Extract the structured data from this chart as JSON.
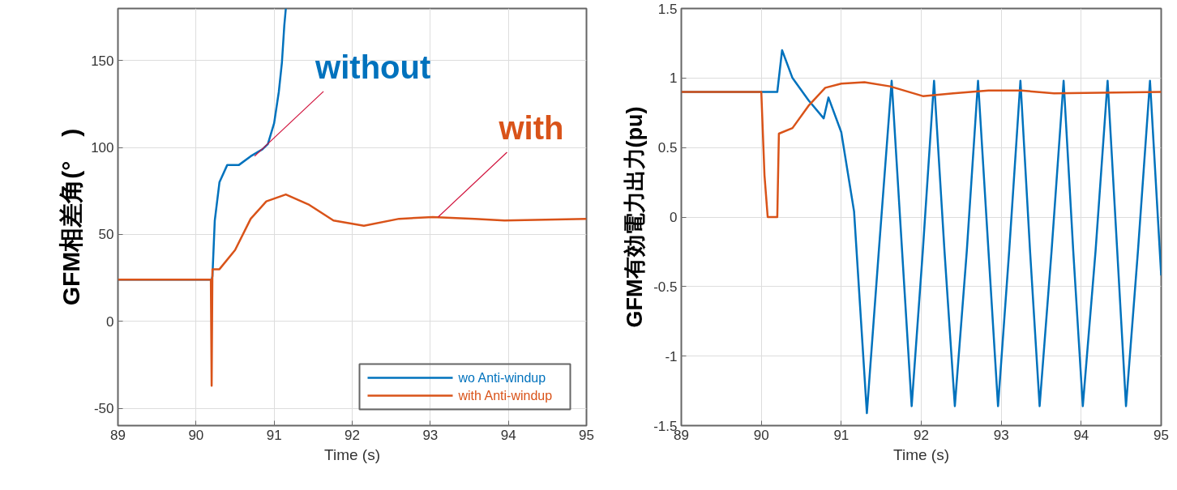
{
  "chart_data": [
    {
      "type": "line",
      "xlabel": "Time (s)",
      "ylabel": "GFM相差角(°　)",
      "xlim": [
        89,
        95
      ],
      "xticks": [
        89,
        90,
        91,
        92,
        93,
        94,
        95
      ],
      "ylim": [
        -60,
        180
      ],
      "yticks": [
        -50,
        0,
        50,
        100,
        150
      ],
      "grid": true,
      "legend": "bottom right",
      "line_style": "solid",
      "annotations": [
        {
          "text": "without",
          "x": 90.75,
          "y": 95
        },
        {
          "text": "with",
          "x": 93.1,
          "y": 60
        }
      ],
      "series": [
        {
          "name": "wo Anti-windup",
          "color": "#0072bd",
          "x": [
            89,
            90.2,
            90.21,
            90.24,
            90.3,
            90.4,
            90.55,
            90.7,
            90.85,
            90.92,
            91.0,
            91.06,
            91.1,
            91.13,
            91.15
          ],
          "values": [
            24,
            24,
            26,
            58,
            80,
            90,
            90,
            95,
            99,
            102,
            114,
            132,
            149,
            170,
            180
          ]
        },
        {
          "name": "with Anti-windup",
          "color": "#d95319",
          "x": [
            89,
            90.19,
            90.2,
            90.21,
            90.3,
            90.5,
            90.7,
            90.9,
            91.15,
            91.45,
            91.76,
            92.15,
            92.6,
            93.03,
            93.57,
            93.95,
            95
          ],
          "values": [
            24,
            24,
            -37,
            30,
            30,
            41,
            59,
            69,
            73,
            67,
            58,
            55,
            59,
            60,
            59,
            58,
            59
          ]
        }
      ]
    },
    {
      "type": "line",
      "xlabel": "Time (s)",
      "ylabel": "GFM有効電力出力(pu)",
      "xlim": [
        89,
        95
      ],
      "xticks": [
        89,
        90,
        91,
        92,
        93,
        94,
        95
      ],
      "ylim": [
        -1.5,
        1.5
      ],
      "yticks": [
        -1.5,
        -1,
        -0.5,
        0,
        0.5,
        1,
        1.5
      ],
      "grid": true,
      "line_style": "solid",
      "series": [
        {
          "color": "#0072bd",
          "x": [
            89,
            90.2,
            90.26,
            90.39,
            90.59,
            90.78,
            90.84,
            91.0,
            91.16,
            91.32,
            91.47,
            91.63,
            91.76,
            91.88,
            92.02,
            92.16,
            92.29,
            92.42,
            92.57,
            92.71,
            92.84,
            92.96,
            93.1,
            93.24,
            93.36,
            93.48,
            93.63,
            93.78,
            93.9,
            94.02,
            94.18,
            94.33,
            94.45,
            94.56,
            94.71,
            94.86,
            95
          ],
          "values": [
            0.9,
            0.9,
            1.2,
            1.0,
            0.84,
            0.71,
            0.86,
            0.61,
            0.04,
            -1.41,
            -0.24,
            0.98,
            -0.24,
            -1.36,
            -0.24,
            0.98,
            -0.24,
            -1.36,
            -0.24,
            0.98,
            -0.24,
            -1.36,
            -0.24,
            0.98,
            -0.24,
            -1.36,
            -0.24,
            0.98,
            -0.24,
            -1.36,
            -0.24,
            0.98,
            -0.24,
            -1.36,
            -0.24,
            0.98,
            -0.42
          ]
        },
        {
          "color": "#d95319",
          "x": [
            89,
            90.0,
            90.04,
            90.08,
            90.2,
            90.22,
            90.39,
            90.59,
            90.8,
            91.0,
            91.29,
            91.61,
            92.02,
            92.4,
            92.84,
            93.25,
            93.66,
            95
          ],
          "values": [
            0.9,
            0.9,
            0.3,
            0,
            0,
            0.6,
            0.64,
            0.8,
            0.93,
            0.96,
            0.97,
            0.94,
            0.87,
            0.89,
            0.91,
            0.91,
            0.89,
            0.9
          ]
        }
      ]
    }
  ]
}
